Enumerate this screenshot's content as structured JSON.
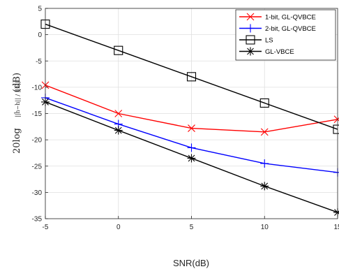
{
  "chart_data": {
    "type": "line",
    "title": "",
    "xlabel": "SNR(dB)",
    "ylabel_prefix": "20log",
    "ylabel_fraction": "||ĥ−h|| / ||h||",
    "ylabel_unit": "(dB)",
    "xlim": [
      -5,
      15
    ],
    "ylim": [
      -35,
      5
    ],
    "xticks": [
      -5,
      0,
      5,
      10,
      15
    ],
    "xtick_labels": [
      "-5",
      "0",
      "5",
      "10",
      "15"
    ],
    "yticks": [
      -35,
      -30,
      -25,
      -20,
      -15,
      -10,
      -5,
      0,
      5
    ],
    "ytick_labels": [
      "-35",
      "-30",
      "-25",
      "-20",
      "-15",
      "-10",
      "-5",
      "0",
      "5"
    ],
    "grid": true,
    "legend_position": "top-right",
    "x": [
      -5,
      0,
      5,
      10,
      15
    ],
    "series": [
      {
        "name": "1-bit, GL-QVBCE",
        "values": [
          -9.6,
          -15.0,
          -17.8,
          -18.5,
          -16.1
        ],
        "color": "#ff0000",
        "marker": "x"
      },
      {
        "name": "2-bit, GL-QVBCE",
        "values": [
          -12.0,
          -17.0,
          -21.5,
          -24.5,
          -26.2
        ],
        "color": "#0000ff",
        "marker": "plus"
      },
      {
        "name": "LS",
        "values": [
          2.0,
          -3.0,
          -8.0,
          -13.0,
          -18.0
        ],
        "color": "#000000",
        "marker": "square"
      },
      {
        "name": "GL-VBCE",
        "values": [
          -12.8,
          -18.2,
          -23.5,
          -28.8,
          -33.8
        ],
        "color": "#000000",
        "marker": "asterisk"
      }
    ]
  }
}
